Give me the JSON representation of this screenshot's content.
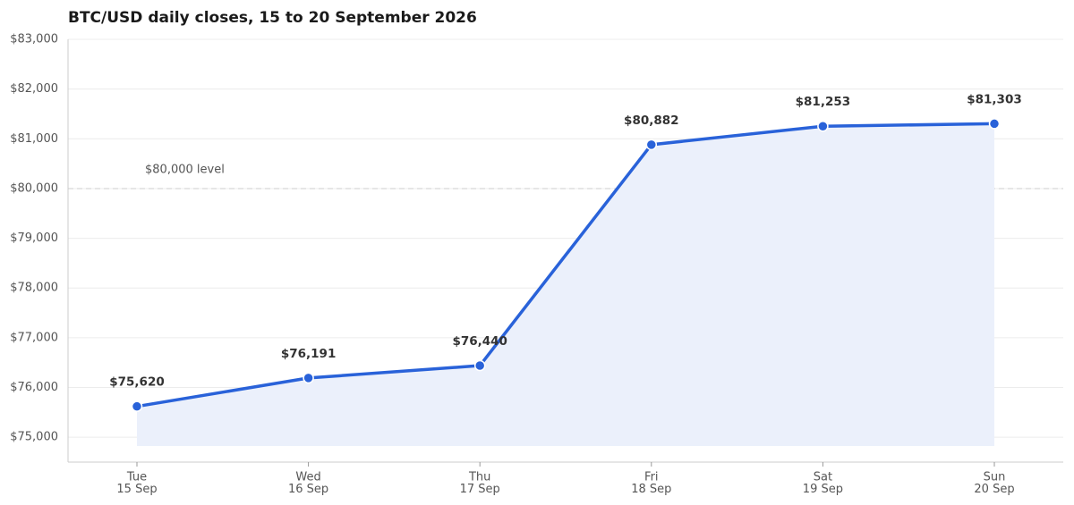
{
  "chart_data": {
    "type": "line",
    "title": "BTC/USD daily closes, 15 to 20 September 2026",
    "categories": [
      [
        "Tue",
        "15 Sep"
      ],
      [
        "Wed",
        "16 Sep"
      ],
      [
        "Thu",
        "17 Sep"
      ],
      [
        "Fri",
        "18 Sep"
      ],
      [
        "Sat",
        "19 Sep"
      ],
      [
        "Sun",
        "20 Sep"
      ]
    ],
    "series": [
      {
        "name": "BTC/USD",
        "color": "#2962d9",
        "fill": "#ebf0fb",
        "values": [
          75620,
          76191,
          76440,
          80882,
          81253,
          81303
        ],
        "value_labels": [
          "$75,620",
          "$76,191",
          "$76,440",
          "$80,882",
          "$81,253",
          "$81,303"
        ]
      }
    ],
    "ylim": [
      74500,
      83000
    ],
    "yticks": [
      {
        "value": 75000,
        "label": "$75,000"
      },
      {
        "value": 76000,
        "label": "$76,000"
      },
      {
        "value": 77000,
        "label": "$77,000"
      },
      {
        "value": 78000,
        "label": "$78,000"
      },
      {
        "value": 79000,
        "label": "$79,000"
      },
      {
        "value": 80000,
        "label": "$80,000"
      },
      {
        "value": 81000,
        "label": "$81,000"
      },
      {
        "value": 82000,
        "label": "$82,000"
      },
      {
        "value": 83000,
        "label": "$83,000"
      }
    ],
    "grid": true,
    "reference_line": {
      "value": 80000,
      "label": "$80,000 level"
    }
  }
}
